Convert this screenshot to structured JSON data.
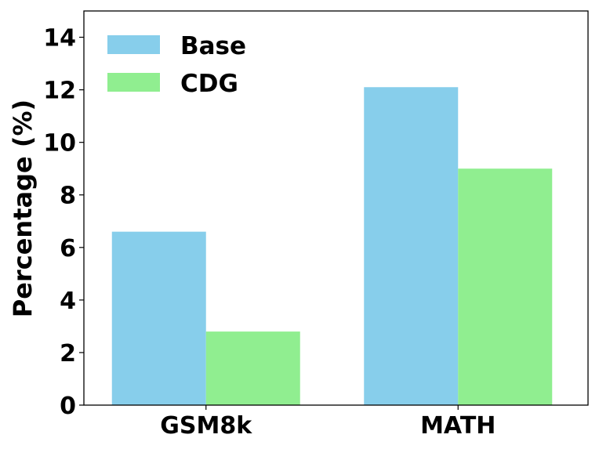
{
  "chart_data": {
    "type": "bar",
    "categories": [
      "GSM8k",
      "MATH"
    ],
    "series": [
      {
        "name": "Base",
        "values": [
          6.6,
          12.1
        ],
        "color": "#87CEEB"
      },
      {
        "name": "CDG",
        "values": [
          2.8,
          9.0
        ],
        "color": "#90EE90"
      }
    ],
    "ylabel": "Percentage (%)",
    "ylim": [
      0,
      15
    ],
    "yticks": [
      "0",
      "2",
      "4",
      "6",
      "8",
      "10",
      "12",
      "14"
    ],
    "legend_position": "top-left",
    "grid": false
  }
}
